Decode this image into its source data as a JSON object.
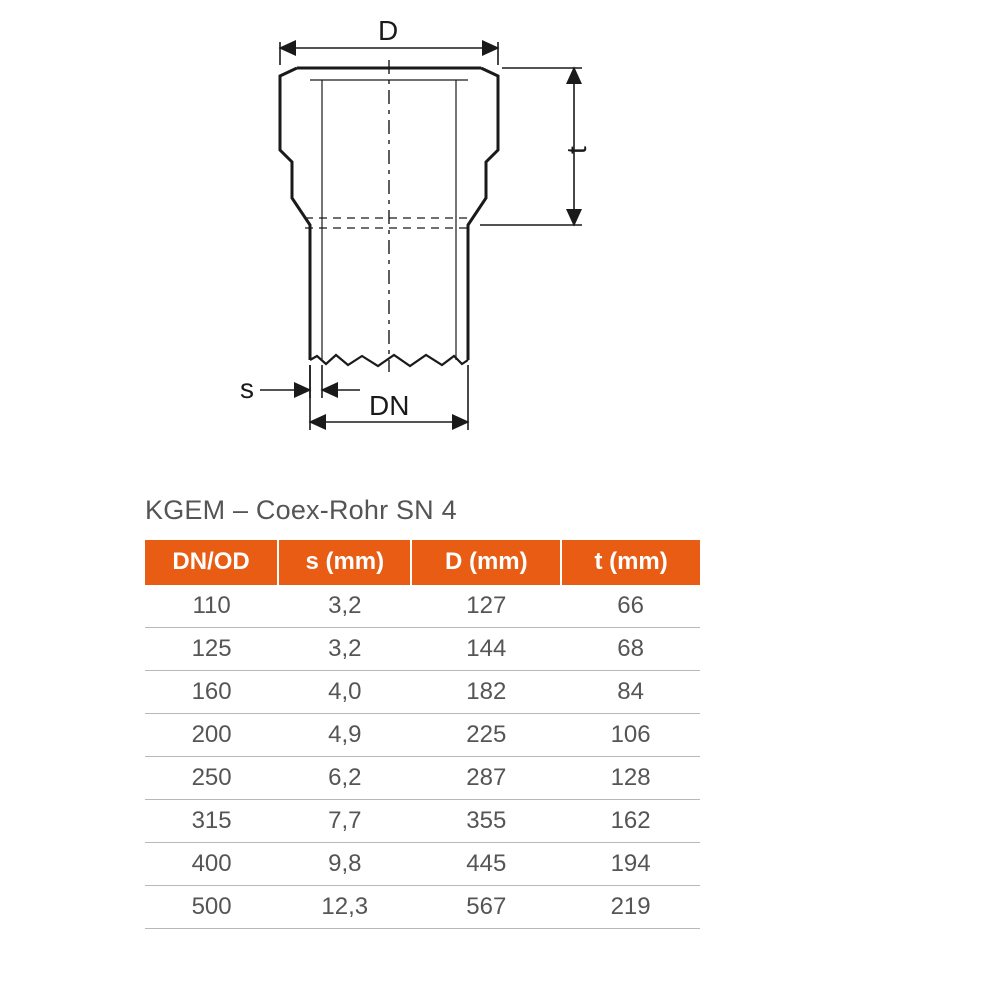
{
  "diagram": {
    "labels": {
      "D": "D",
      "t": "t",
      "s": "s",
      "DN": "DN"
    },
    "stroke_color": "#1a1a1a",
    "stroke_width_heavy": 3,
    "stroke_width_thin": 1.6,
    "dash_pattern": "14 6 4 6"
  },
  "table": {
    "title": "KGEM – Coex-Rohr SN 4",
    "header_bg": "#e85c13",
    "header_fg": "#ffffff",
    "row_border": "#b8b8b8",
    "cell_color": "#555555",
    "columns": [
      "DN/OD",
      "s (mm)",
      "D (mm)",
      "t (mm)"
    ],
    "col_widths": [
      "24%",
      "24%",
      "27%",
      "25%"
    ],
    "rows": [
      [
        "110",
        "3,2",
        "127",
        "66"
      ],
      [
        "125",
        "3,2",
        "144",
        "68"
      ],
      [
        "160",
        "4,0",
        "182",
        "84"
      ],
      [
        "200",
        "4,9",
        "225",
        "106"
      ],
      [
        "250",
        "6,2",
        "287",
        "128"
      ],
      [
        "315",
        "7,7",
        "355",
        "162"
      ],
      [
        "400",
        "9,8",
        "445",
        "194"
      ],
      [
        "500",
        "12,3",
        "567",
        "219"
      ]
    ]
  }
}
